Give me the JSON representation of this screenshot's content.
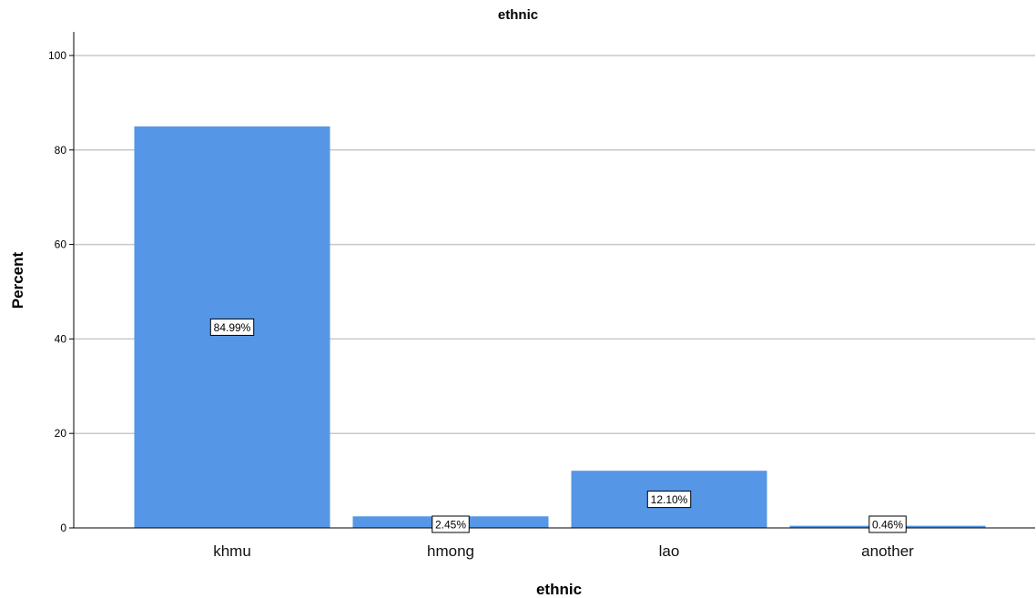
{
  "chart_data": {
    "type": "bar",
    "title": "ethnic",
    "xlabel": "ethnic",
    "ylabel": "Percent",
    "categories": [
      "khmu",
      "hmong",
      "lao",
      "another"
    ],
    "values": [
      84.99,
      2.45,
      12.1,
      0.46
    ],
    "data_labels": [
      "84.99%",
      "2.45%",
      "12.10%",
      "0.46%"
    ],
    "ylim": [
      0,
      105
    ],
    "yticks": [
      0,
      20,
      40,
      60,
      80,
      100
    ],
    "grid": true,
    "legend": "none",
    "bar_color": "#5596E6",
    "grid_color": "#C8C8C8"
  }
}
